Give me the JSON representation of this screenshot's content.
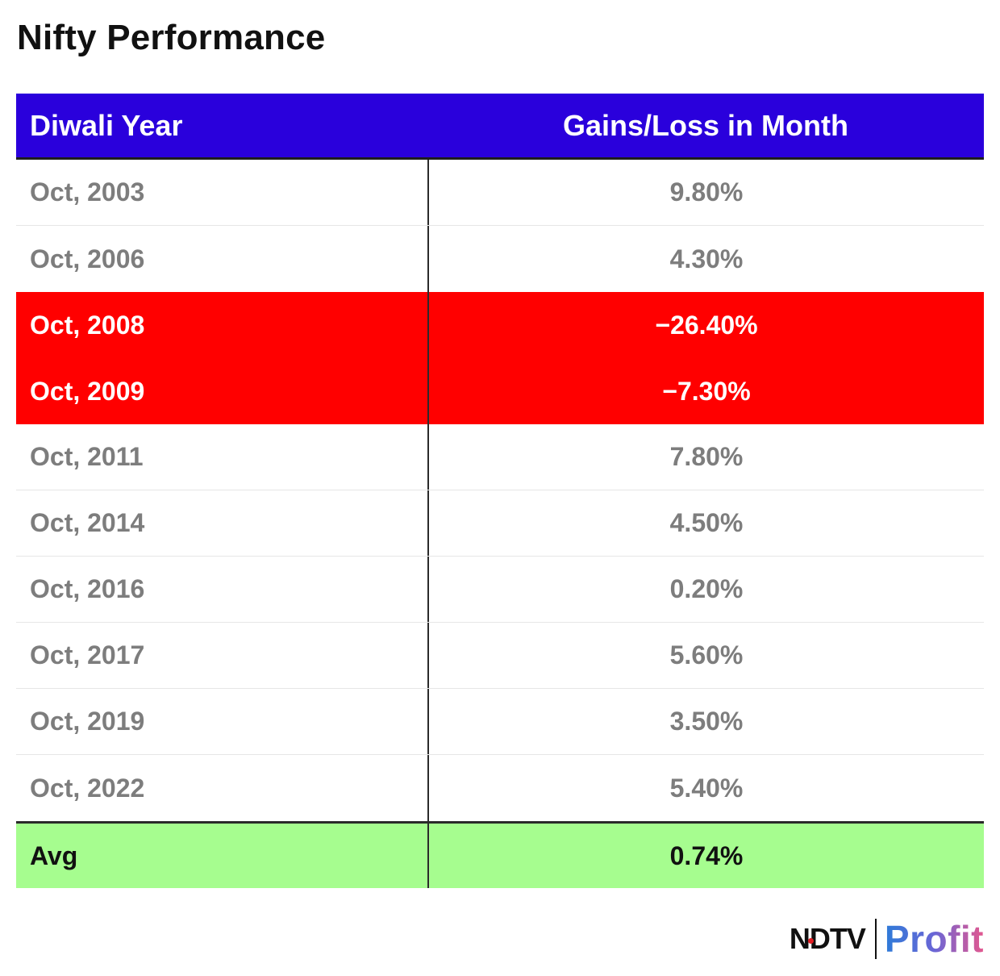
{
  "title": "Nifty Performance",
  "chart_data": {
    "type": "table",
    "title": "Nifty Performance",
    "columns": [
      "Diwali Year",
      "Gains/Loss in Month"
    ],
    "rows": [
      {
        "year": "Oct, 2003",
        "gain": "9.80%",
        "value": 9.8,
        "highlight": "none"
      },
      {
        "year": "Oct, 2006",
        "gain": "4.30%",
        "value": 4.3,
        "highlight": "none"
      },
      {
        "year": "Oct, 2008",
        "gain": "−26.40%",
        "value": -26.4,
        "highlight": "red"
      },
      {
        "year": "Oct, 2009",
        "gain": "−7.30%",
        "value": -7.3,
        "highlight": "red"
      },
      {
        "year": "Oct, 2011",
        "gain": "7.80%",
        "value": 7.8,
        "highlight": "none"
      },
      {
        "year": "Oct, 2014",
        "gain": "4.50%",
        "value": 4.5,
        "highlight": "none"
      },
      {
        "year": "Oct, 2016",
        "gain": "0.20%",
        "value": 0.2,
        "highlight": "none"
      },
      {
        "year": "Oct, 2017",
        "gain": "5.60%",
        "value": 5.6,
        "highlight": "none"
      },
      {
        "year": "Oct, 2019",
        "gain": "3.50%",
        "value": 3.5,
        "highlight": "none"
      },
      {
        "year": "Oct, 2022",
        "gain": "5.40%",
        "value": 5.4,
        "highlight": "none"
      }
    ],
    "summary": {
      "label": "Avg",
      "gain": "0.74%",
      "value": 0.74
    }
  },
  "colors": {
    "header_bg": "#2a00dc",
    "loss_bg": "#ff0000",
    "avg_bg": "#a6fd8f",
    "text_muted": "#7d7d7d"
  },
  "branding": {
    "brand": "NDTV",
    "product": "Profit"
  }
}
